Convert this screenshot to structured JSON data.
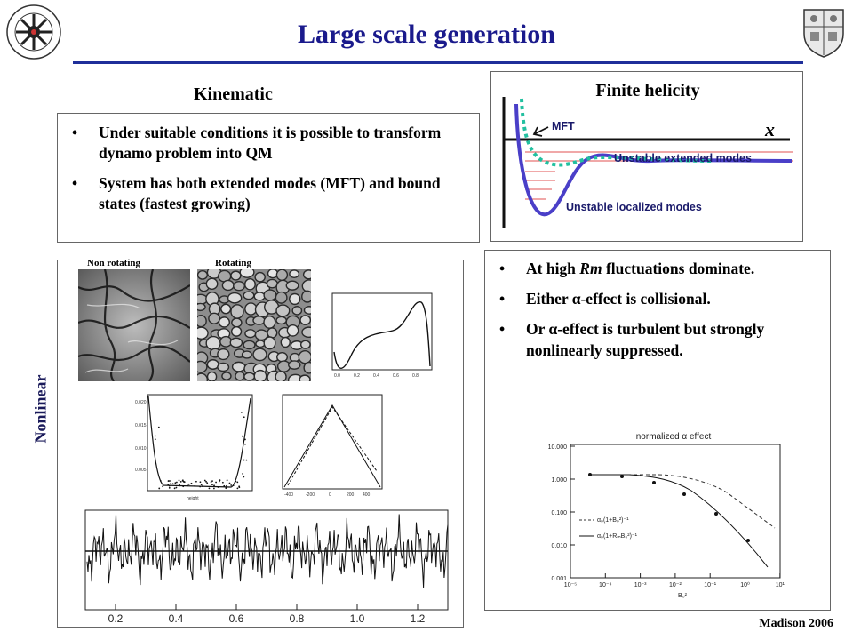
{
  "slide": {
    "title": "Large scale generation",
    "footer": "Madison 2006",
    "accent_color": "#1a1a8c"
  },
  "kinematic": {
    "label": "Kinematic",
    "bullets": [
      "Under suitable conditions it is possible to transform dynamo problem into QM",
      "System has both extended modes (MFT) and bound states (fastest growing)"
    ]
  },
  "finite_helicity": {
    "title": "Finite helicity",
    "mft_label": "MFT",
    "axis_label": "x",
    "extended_label": "Unstable extended modes",
    "localized_label": "Unstable localized modes"
  },
  "nonlinear": {
    "label": "Nonlinear",
    "caption_left": "Non rotating",
    "caption_right": "Rotating",
    "time_series_ticks": [
      "0.2",
      "0.4",
      "0.6",
      "0.8",
      "1.0",
      "1.2"
    ]
  },
  "high_rm": {
    "bullets": [
      [
        "At high ",
        "Rm",
        " fluctuations dominate."
      ],
      [
        "Either ",
        "α",
        "-effect is collisional."
      ],
      [
        "Or ",
        "α",
        "-effect is turbulent but strongly nonlinearly suppressed."
      ]
    ]
  },
  "alpha_plot": {
    "title": "normalized α effect",
    "y_ticks": [
      "10.000",
      "1.000",
      "0.100",
      "0.010",
      "0.001"
    ],
    "x_ticks": [
      "10⁻⁵",
      "10⁻⁴",
      "10⁻³",
      "10⁻²",
      "10⁻¹",
      "10⁰",
      "10¹"
    ],
    "x_label": "B₀²",
    "legend": [
      "α₀(1+B₀²)⁻¹",
      "α₀(1+RₘB₀²)⁻¹"
    ]
  }
}
